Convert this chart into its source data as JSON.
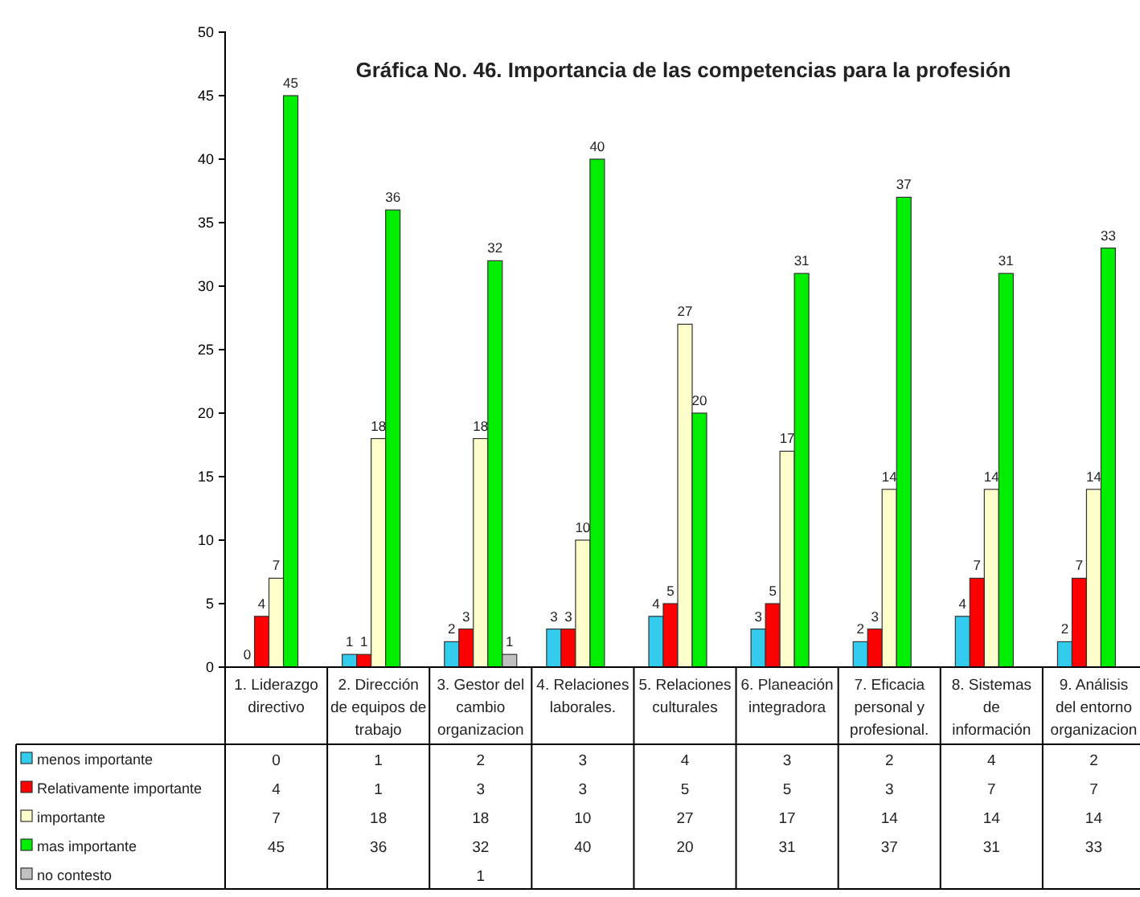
{
  "chart_data": {
    "type": "bar",
    "title": "Gráfica No. 46. Importancia de las competencias para la profesión",
    "categories": [
      "1. Liderazgo directivo",
      "2. Dirección de equipos de trabajo",
      "3. Gestor del cambio organizacion",
      "4. Relaciones laborales.",
      "5. Relaciones culturales",
      "6. Planeación integradora",
      "7. Eficacia personal y profesional.",
      "8. Sistemas de información",
      "9. Análisis del entorno organizacion"
    ],
    "series": [
      {
        "name": "menos importante",
        "color": "#33ccee",
        "values": [
          0,
          1,
          2,
          3,
          4,
          3,
          2,
          4,
          2
        ],
        "value_labels": [
          "0",
          "1",
          "2",
          "3",
          "4",
          "3",
          "2",
          "4",
          "2"
        ]
      },
      {
        "name": "Relativamente importante",
        "color": "#ff0000",
        "values": [
          4,
          1,
          3,
          3,
          5,
          5,
          3,
          7,
          7
        ],
        "value_labels": [
          "4",
          "1",
          "3",
          "3",
          "5",
          "5",
          "3",
          "7",
          "7"
        ]
      },
      {
        "name": "importante",
        "color": "#ffffcc",
        "values": [
          7,
          18,
          18,
          10,
          27,
          17,
          14,
          14,
          14
        ],
        "value_labels": [
          "7",
          "18",
          "18",
          "10",
          "27",
          "17",
          "14",
          "14",
          "14"
        ]
      },
      {
        "name": "mas importante",
        "color": "#00ee00",
        "values": [
          45,
          36,
          32,
          40,
          20,
          31,
          37,
          31,
          33
        ],
        "value_labels": [
          "45",
          "36",
          "32",
          "40",
          "20",
          "31",
          "37",
          "31",
          "33"
        ]
      },
      {
        "name": "no contesto",
        "color": "#c0c0c0",
        "values": [
          null,
          null,
          1,
          null,
          null,
          null,
          null,
          null,
          null
        ],
        "value_labels": [
          null,
          null,
          "1",
          null,
          null,
          null,
          null,
          null,
          null
        ]
      }
    ],
    "ylim": [
      0,
      50
    ],
    "yticks": [
      0,
      5,
      10,
      15,
      20,
      25,
      30,
      35,
      40,
      45,
      50
    ],
    "grid": false,
    "legend": "bottom left"
  }
}
